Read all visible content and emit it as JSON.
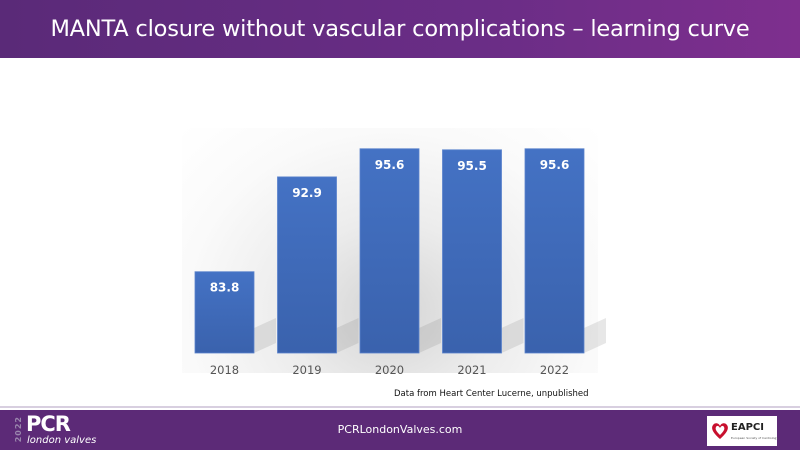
{
  "header": {
    "title": "MANTA closure without vascular complications – learning curve"
  },
  "chart_data": {
    "type": "bar",
    "categories": [
      "2018",
      "2019",
      "2020",
      "2021",
      "2022"
    ],
    "values": [
      83.8,
      92.9,
      95.6,
      95.5,
      95.6
    ],
    "data_labels": [
      "83.8",
      "92.9",
      "95.6",
      "95.5",
      "95.6"
    ],
    "ylim": [
      76,
      97.4
    ],
    "grid": false,
    "bar_color": "#4472c4",
    "annotation": "Data from Heart Center Lucerne, unpublished"
  },
  "footer": {
    "url": "PCRLondonValves.com",
    "logo_left": {
      "year": "2022",
      "name": "PCR",
      "sub": "london valves"
    },
    "logo_right": {
      "name": "EAPCI",
      "sub": "European Society of Cardiology"
    }
  },
  "colors": {
    "header": "#6a2d86",
    "footer": "#5c2a77"
  }
}
